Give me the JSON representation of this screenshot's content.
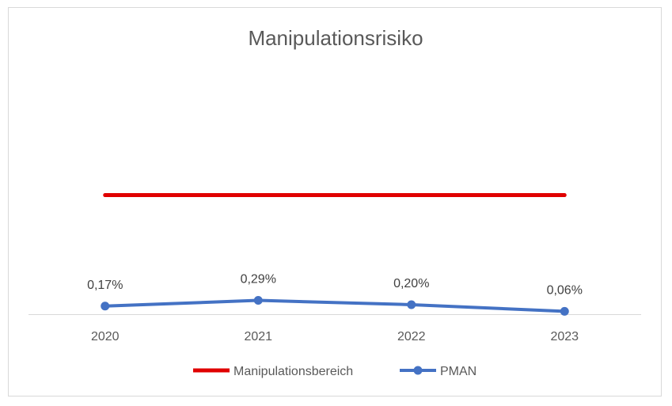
{
  "chart_data": {
    "type": "line",
    "title": "Manipulationsrisiko",
    "categories": [
      "2020",
      "2021",
      "2022",
      "2023"
    ],
    "series": [
      {
        "name": "Manipulationsbereich",
        "color": "#e00000",
        "marker": false,
        "values": [
          2.5,
          2.5,
          2.5,
          2.5
        ],
        "data_labels": [
          "",
          "",
          "",
          ""
        ]
      },
      {
        "name": "PMAN",
        "color": "#4472c4",
        "marker": true,
        "values": [
          0.17,
          0.29,
          0.2,
          0.06
        ],
        "data_labels": [
          "0,17%",
          "0,29%",
          "0,20%",
          "0,06%"
        ]
      }
    ],
    "xlabel": "",
    "ylabel": "",
    "ylim": [
      0,
      5.6
    ],
    "grid": false,
    "legend": "bottom"
  }
}
